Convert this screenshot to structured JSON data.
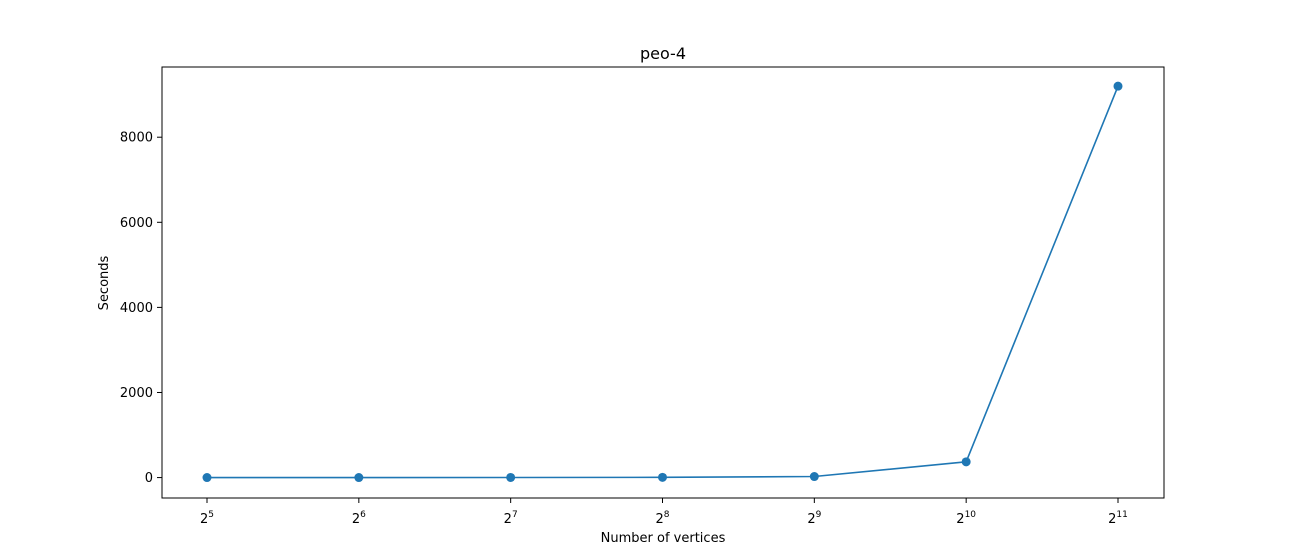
{
  "chart_data": {
    "type": "line",
    "title": "peo-4",
    "xlabel": "Number of vertices",
    "ylabel": "Seconds",
    "x_scale": "log2",
    "x": [
      32,
      64,
      128,
      256,
      512,
      1024,
      2048
    ],
    "x_tick_labels": [
      {
        "base": "2",
        "exp": "5"
      },
      {
        "base": "2",
        "exp": "6"
      },
      {
        "base": "2",
        "exp": "7"
      },
      {
        "base": "2",
        "exp": "8"
      },
      {
        "base": "2",
        "exp": "9"
      },
      {
        "base": "2",
        "exp": "10"
      },
      {
        "base": "2",
        "exp": "11"
      }
    ],
    "y_ticks": [
      0,
      2000,
      4000,
      6000,
      8000
    ],
    "ylim": [
      -480,
      9650
    ],
    "grid": false,
    "series": [
      {
        "color": "#1f77b4",
        "marker": "circle",
        "values": [
          0.5,
          1,
          2,
          5,
          25,
          370,
          9200
        ]
      }
    ]
  }
}
